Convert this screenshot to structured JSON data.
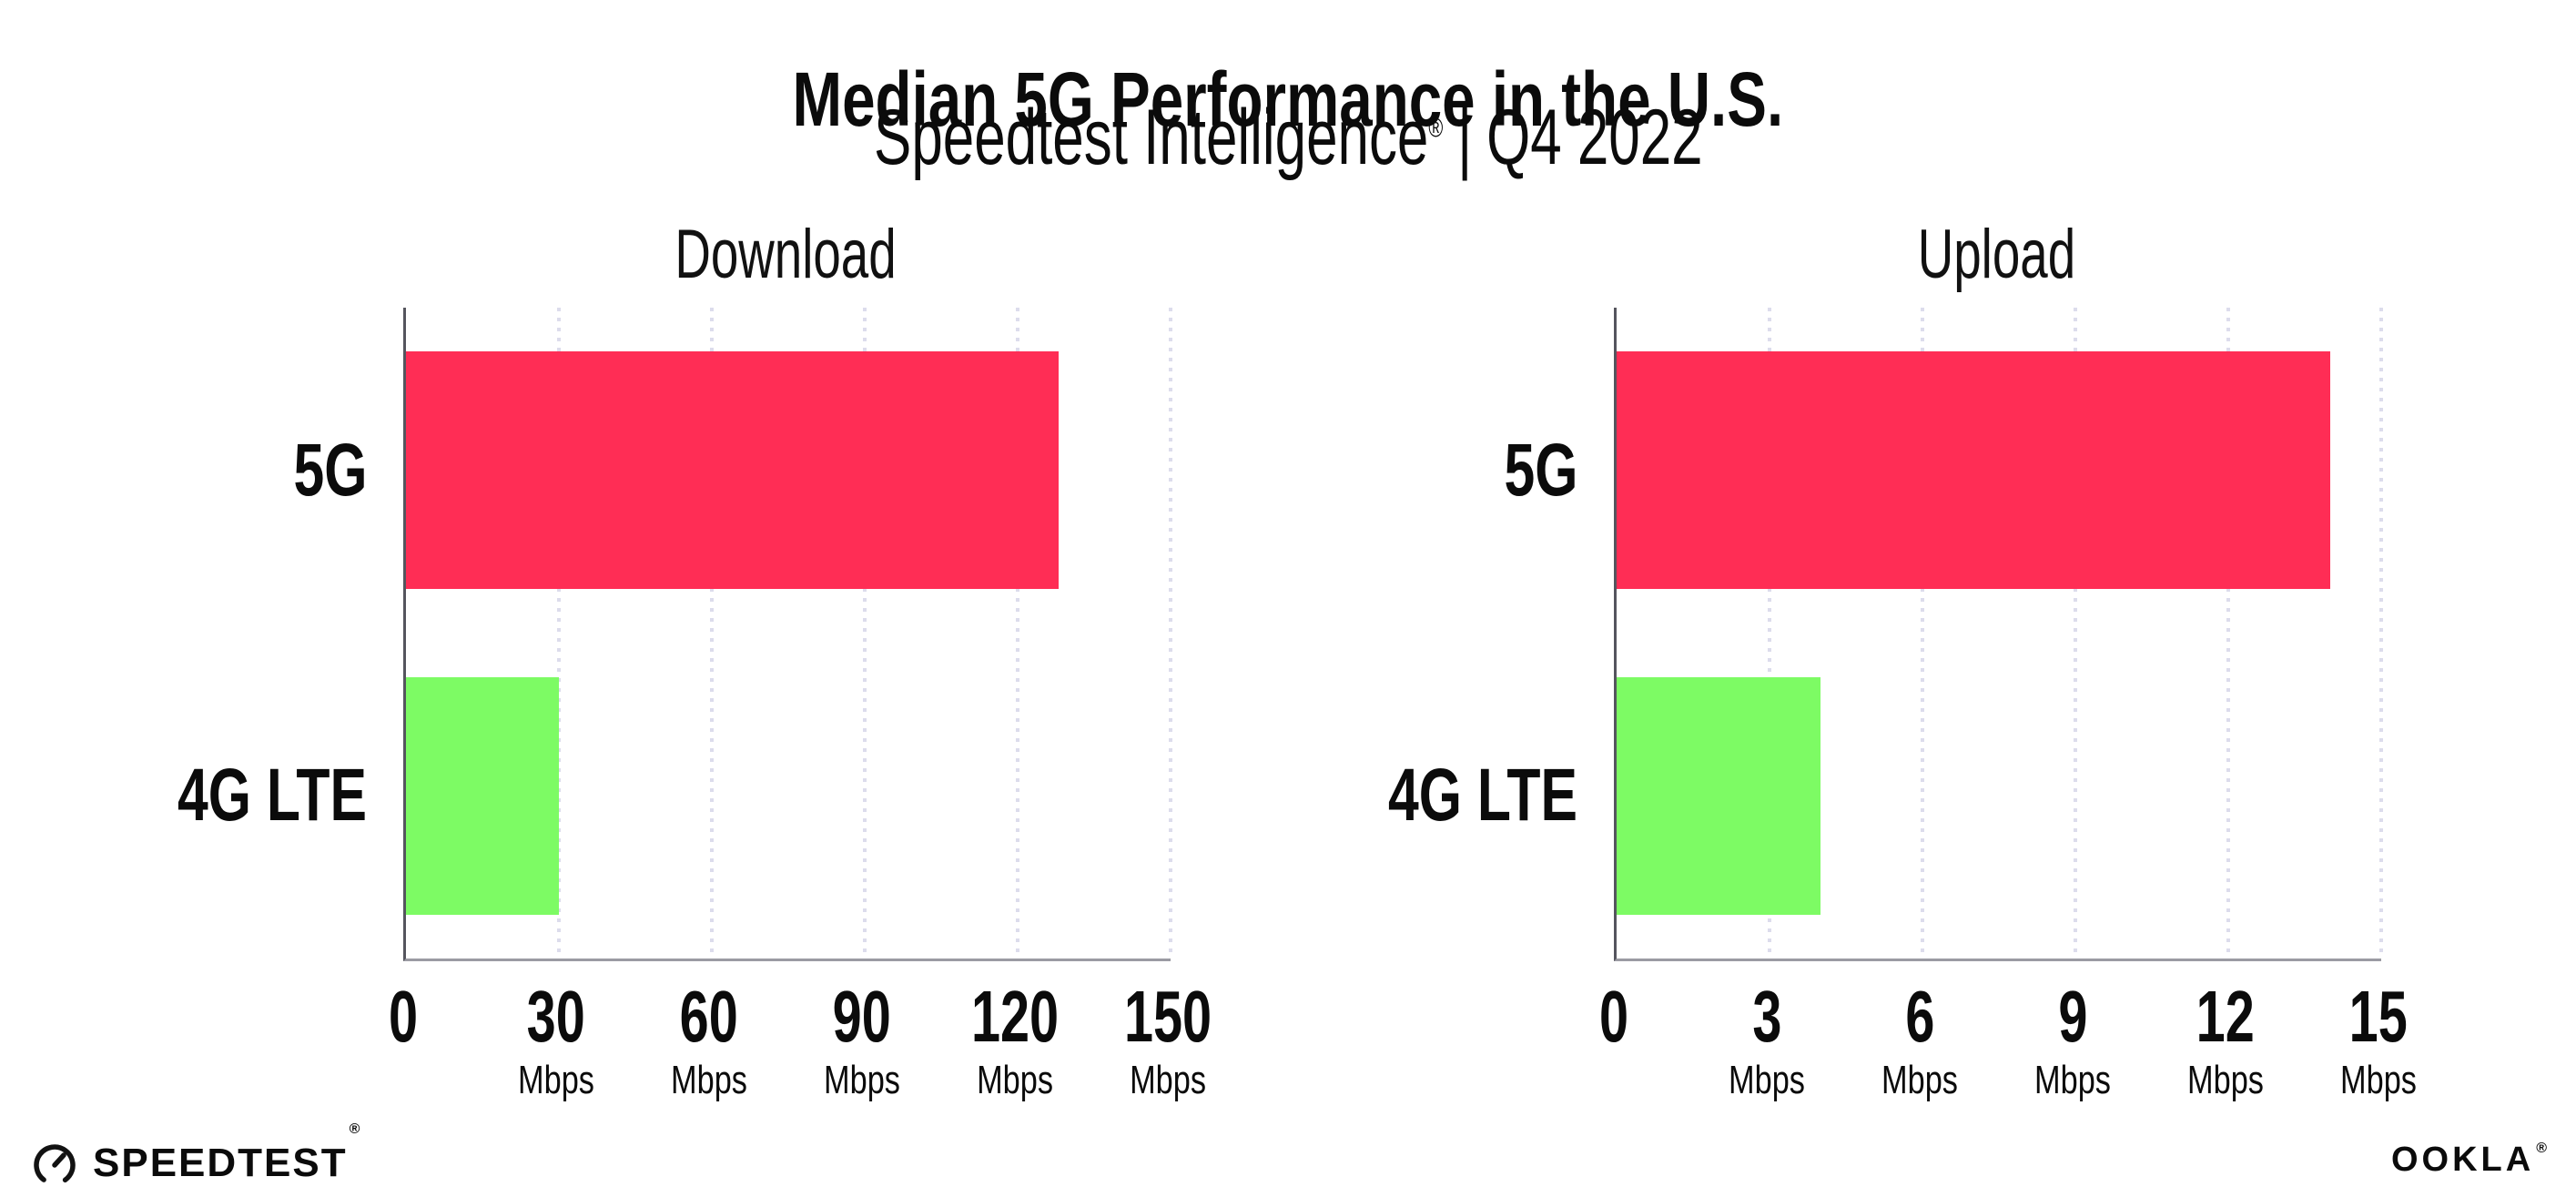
{
  "header": {
    "title": "Median 5G Performance in the U.S.",
    "subtitle": {
      "brand": "Speedtest Intelligence",
      "registered_mark": "®",
      "separator": "|",
      "period": "Q4 2022"
    }
  },
  "footer": {
    "speedtest": {
      "text": "SPEEDTEST",
      "mark": "®"
    },
    "ookla": {
      "text": "OOKLA",
      "mark": "®"
    }
  },
  "colors": {
    "bar_5g": "#FF2D55",
    "bar_4g_lte": "#7DFB64",
    "gridline": "#DCDCEC",
    "axis_y": "#55555E",
    "axis_x": "#9B9BA3",
    "text": "#0B0B0B",
    "background": "#FFFFFF"
  },
  "chart_data": [
    {
      "type": "bar",
      "orientation": "horizontal",
      "title": "Download",
      "categories": [
        "5G",
        "4G LTE"
      ],
      "values": [
        128,
        30
      ],
      "unit": "Mbps",
      "xlim": [
        0,
        150
      ],
      "xticks": [
        0,
        30,
        60,
        90,
        120,
        150
      ],
      "grid": "vertical-dotted",
      "legend": "none"
    },
    {
      "type": "bar",
      "orientation": "horizontal",
      "title": "Upload",
      "categories": [
        "5G",
        "4G LTE"
      ],
      "values": [
        14,
        4
      ],
      "unit": "Mbps",
      "xlim": [
        0,
        15
      ],
      "xticks": [
        0,
        3,
        6,
        9,
        12,
        15
      ],
      "grid": "vertical-dotted",
      "legend": "none"
    }
  ]
}
